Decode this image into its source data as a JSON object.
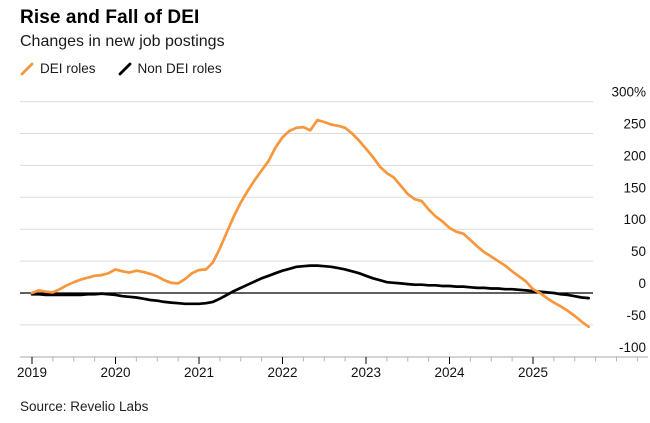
{
  "header": {
    "title": "Rise and Fall of DEI",
    "subtitle": "Changes in new job postings"
  },
  "legend": [
    {
      "label": "DEI roles",
      "color": "#f7973d"
    },
    {
      "label": "Non DEI roles",
      "color": "#000000"
    }
  ],
  "source": "Source: Revelio Labs",
  "chart_data": {
    "type": "line",
    "title": "Rise and Fall of DEI",
    "subtitle": "Changes in new job postings",
    "unit": "percent change",
    "x_start": "2019-01",
    "x_end": "2025-09",
    "x_step_months": 1,
    "ylim": [
      -100,
      300
    ],
    "yticks": [
      300,
      250,
      200,
      150,
      100,
      50,
      0,
      -50,
      -100
    ],
    "ytick_labels": [
      "300%",
      "250",
      "200",
      "150",
      "100",
      "50",
      "0",
      "-50",
      "-100"
    ],
    "xtick_years": [
      2019,
      2020,
      2021,
      2022,
      2023,
      2024,
      2025
    ],
    "xtick_labels": [
      "2019",
      "2020",
      "2021",
      "2022",
      "2023",
      "2024",
      "2025"
    ],
    "grid": "horizontal",
    "legend_position": "top-left",
    "series": [
      {
        "name": "DEI roles",
        "color": "#f7973d",
        "values": [
          0,
          4,
          2,
          1,
          6,
          12,
          17,
          21,
          24,
          27,
          28,
          31,
          37,
          34,
          32,
          35,
          33,
          30,
          26,
          20,
          16,
          15,
          22,
          31,
          36,
          37,
          48,
          70,
          95,
          120,
          142,
          160,
          177,
          192,
          207,
          228,
          244,
          254,
          259,
          260,
          255,
          271,
          268,
          264,
          262,
          259,
          250,
          239,
          226,
          213,
          198,
          188,
          181,
          168,
          155,
          147,
          144,
          131,
          120,
          112,
          102,
          96,
          93,
          83,
          73,
          64,
          57,
          50,
          43,
          34,
          26,
          18,
          6,
          0,
          -8,
          -15,
          -21,
          -28,
          -36,
          -45,
          -53
        ]
      },
      {
        "name": "Non DEI roles",
        "color": "#000000",
        "values": [
          -2,
          -2,
          -3,
          -3,
          -3,
          -3,
          -3,
          -3,
          -2,
          -2,
          -1,
          -2,
          -3,
          -5,
          -6,
          -7,
          -9,
          -11,
          -12,
          -14,
          -15,
          -16,
          -17,
          -17,
          -17,
          -16,
          -14,
          -9,
          -3,
          3,
          8,
          13,
          18,
          23,
          27,
          31,
          35,
          38,
          41,
          42,
          43,
          43,
          42,
          41,
          39,
          37,
          34,
          31,
          27,
          23,
          20,
          17,
          16,
          15,
          14,
          13,
          13,
          12,
          12,
          11,
          11,
          10,
          10,
          9,
          8,
          8,
          7,
          7,
          6,
          6,
          5,
          4,
          3,
          2,
          1,
          0,
          -2,
          -3,
          -5,
          -7,
          -8
        ]
      }
    ]
  }
}
